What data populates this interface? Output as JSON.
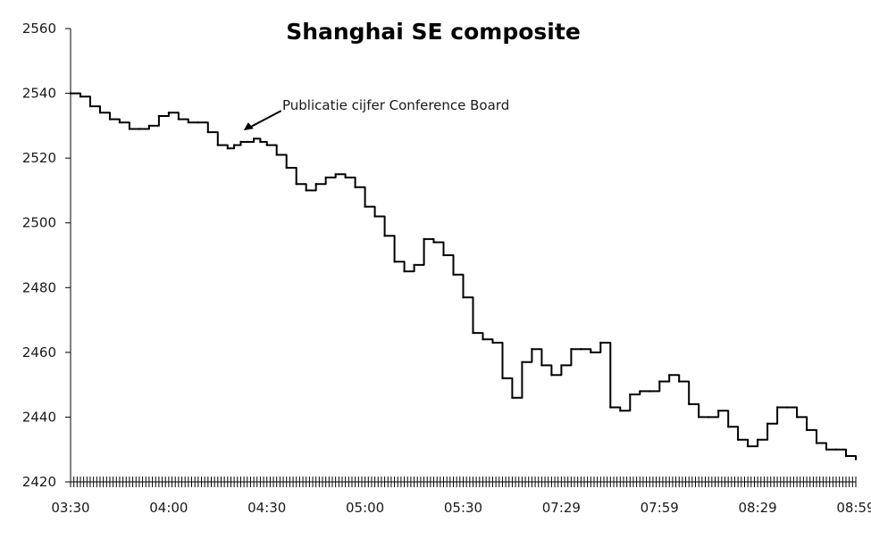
{
  "chart_data": {
    "type": "line",
    "title": "Shanghai SE composite",
    "xlabel": "",
    "ylabel": "",
    "ylim": [
      2420,
      2560
    ],
    "yticks": [
      2420,
      2440,
      2460,
      2480,
      2500,
      2520,
      2540,
      2560
    ],
    "x_tick_labels": [
      "03:30",
      "04:00",
      "04:30",
      "05:00",
      "05:30",
      "07:29",
      "07:59",
      "08:29",
      "08:59"
    ],
    "x_tick_positions": [
      0,
      30,
      60,
      90,
      120,
      150,
      180,
      210,
      240
    ],
    "xlim": [
      0,
      240
    ],
    "grid": false,
    "annotation": {
      "text": "Publicatie cijfer Conference Board",
      "x": 51,
      "y": 2528
    },
    "series": [
      {
        "x": [
          0,
          3,
          6,
          9,
          12,
          15,
          18,
          21,
          24,
          27,
          30,
          33,
          36,
          39,
          42,
          45,
          48,
          50,
          52,
          54,
          56,
          58,
          60,
          63,
          66,
          69,
          72,
          75,
          78,
          81,
          84,
          87,
          90,
          93,
          96,
          99,
          102,
          105,
          108,
          111,
          114,
          117,
          120,
          123,
          126,
          129,
          132,
          135,
          138,
          141,
          144,
          147,
          150,
          153,
          156,
          159,
          162,
          165,
          168,
          171,
          174,
          177,
          180,
          183,
          186,
          189,
          192,
          195,
          198,
          201,
          204,
          207,
          210,
          213,
          216,
          219,
          222,
          225,
          228,
          231,
          234,
          237,
          240
        ],
        "values": [
          2540,
          2539,
          2536,
          2534,
          2532,
          2531,
          2529,
          2529,
          2530,
          2533,
          2534,
          2532,
          2531,
          2531,
          2528,
          2524,
          2523,
          2524,
          2525,
          2525,
          2526,
          2525,
          2524,
          2521,
          2517,
          2512,
          2510,
          2512,
          2514,
          2515,
          2514,
          2511,
          2505,
          2502,
          2496,
          2488,
          2485,
          2487,
          2495,
          2494,
          2490,
          2484,
          2477,
          2466,
          2464,
          2463,
          2452,
          2446,
          2457,
          2461,
          2456,
          2453,
          2456,
          2461,
          2461,
          2460,
          2463,
          2443,
          2442,
          2447,
          2448,
          2448,
          2451,
          2453,
          2451,
          2444,
          2440,
          2440,
          2442,
          2437,
          2433,
          2431,
          2433,
          2438,
          2443,
          2443,
          2440,
          2436,
          2432,
          2430,
          2430,
          2428,
          2427
        ]
      }
    ]
  }
}
